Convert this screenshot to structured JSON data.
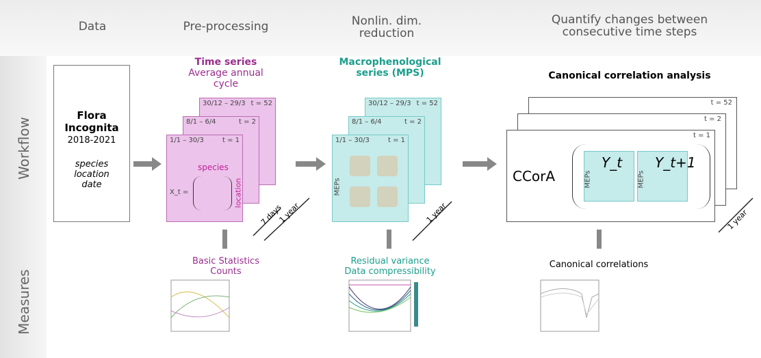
{
  "header": {
    "columns": [
      "Data",
      "Pre-processing",
      "Nonlin. dim. reduction",
      "Quantify changes between consecutive time steps"
    ]
  },
  "side_labels": [
    "Workflow",
    "Measures"
  ],
  "data_box": {
    "title": "Flora Incognita",
    "years": "2018-2021",
    "fields": [
      "species",
      "location",
      "date"
    ]
  },
  "preprocessing": {
    "title": "Time series",
    "subtitle": "Average annual cycle",
    "cards": [
      {
        "range": "30/12 – 29/3",
        "step": "t = 52"
      },
      {
        "range": "8/1 – 6/4",
        "step": "t = 2"
      },
      {
        "range": "1/1 – 30/3",
        "step": "t = 1"
      }
    ],
    "row_label": "species",
    "col_label": "location",
    "matrix_label": "X_t =",
    "window": "7 days",
    "span": "1 year"
  },
  "reduction": {
    "title": "Macrophenological series (MPS)",
    "cards": [
      {
        "range": "30/12 – 29/3",
        "step": "t = 52"
      },
      {
        "range": "8/1 – 6/4",
        "step": "t = 2"
      },
      {
        "range": "1/1 – 30/3",
        "step": "t = 1"
      }
    ],
    "axis_label": "MEPs",
    "span": "1 year"
  },
  "cca": {
    "title": "Canonical correlation analysis",
    "steps": [
      "t = 52",
      "t = 2",
      "t = 1"
    ],
    "method": "CCorA",
    "left": "Y_t",
    "right": "Y_t+1",
    "axis_label": "MEPs",
    "span": "1 year"
  },
  "measures": {
    "preprocessing": [
      "Basic Statistics",
      "Counts"
    ],
    "reduction": [
      "Residual variance",
      "Data compressibility"
    ],
    "cca": [
      "Canonical correlations"
    ]
  }
}
